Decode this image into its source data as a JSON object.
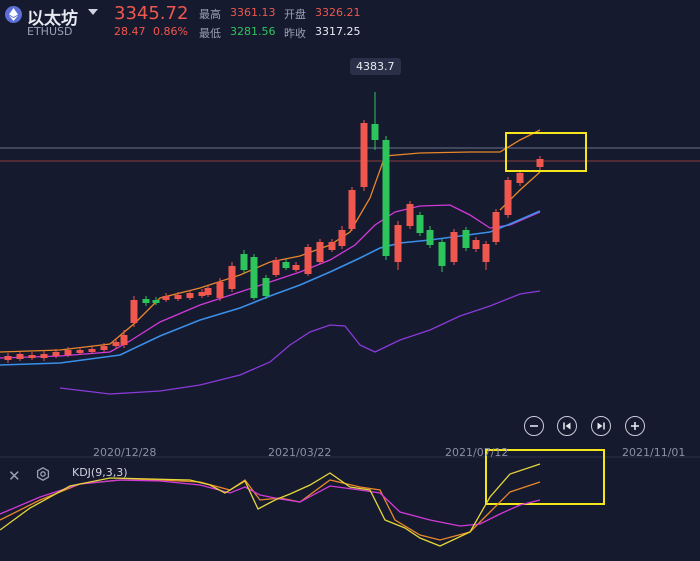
{
  "header": {
    "name": "以太坊",
    "symbol": "ETHUSD",
    "price": "3345.72",
    "change": "28.47",
    "change_pct": "0.86%",
    "high_label": "最高",
    "high_value": "3361.13",
    "open_label": "开盘",
    "open_value": "3326.21",
    "low_label": "最低",
    "low_value": "3281.56",
    "prev_label": "昨收",
    "prev_value": "3317.25"
  },
  "chart": {
    "peak_label": "4383.7",
    "x_labels": [
      "2020/12/28",
      "2021/03/22",
      "2021/07/12",
      "2021/11/01"
    ],
    "buttons": [
      "zoom-out",
      "prev",
      "next",
      "zoom-in"
    ]
  },
  "indicator": {
    "name": "KDJ(9,3,3)"
  },
  "colors": {
    "background": "#151a2e",
    "up": "#f0574f",
    "down": "#2ec45c",
    "highlight_box": "#f5e61c",
    "ma_orange": "#e8872a",
    "ma_magenta": "#d23ad8",
    "ma_blue": "#3a8fe8",
    "ma_purple": "#8a3ad8"
  }
}
